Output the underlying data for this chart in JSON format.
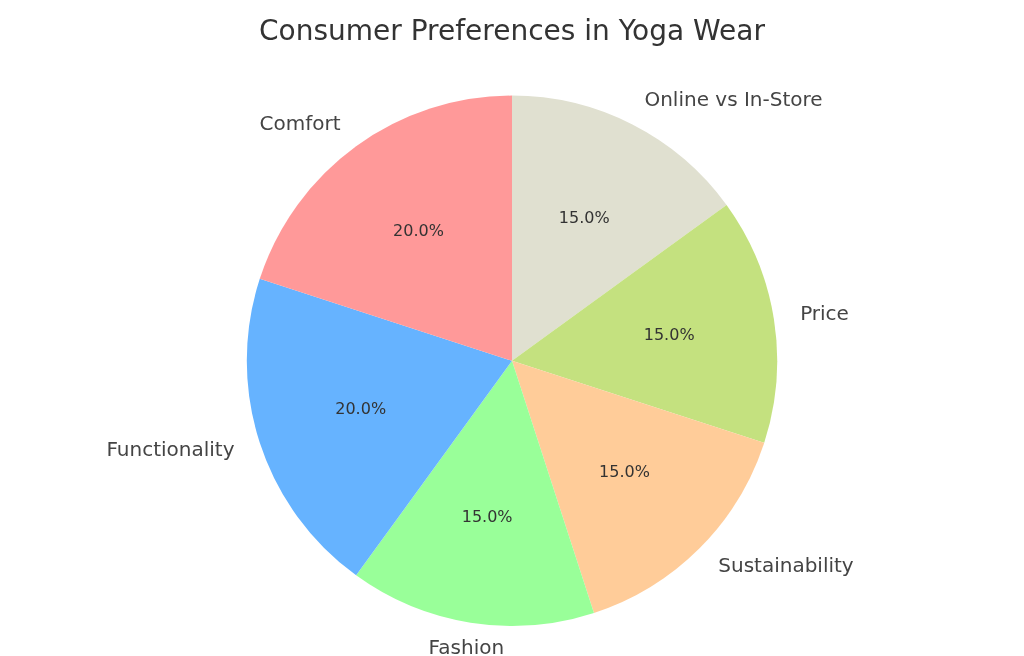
{
  "chart_data": {
    "type": "pie",
    "title": "Consumer Preferences in Yoga Wear",
    "categories": [
      "Online vs In-Store",
      "Price",
      "Sustainability",
      "Fashion",
      "Functionality",
      "Comfort"
    ],
    "values": [
      15,
      15,
      15,
      15,
      20,
      20
    ],
    "colors": [
      "#e0e0d0",
      "#c4e17f",
      "#ffcc99",
      "#99ff99",
      "#66b3ff",
      "#ff9999"
    ],
    "value_labels": [
      "15.0%",
      "15.0%",
      "15.0%",
      "15.0%",
      "20.0%",
      "20.0%"
    ],
    "legend": false
  }
}
